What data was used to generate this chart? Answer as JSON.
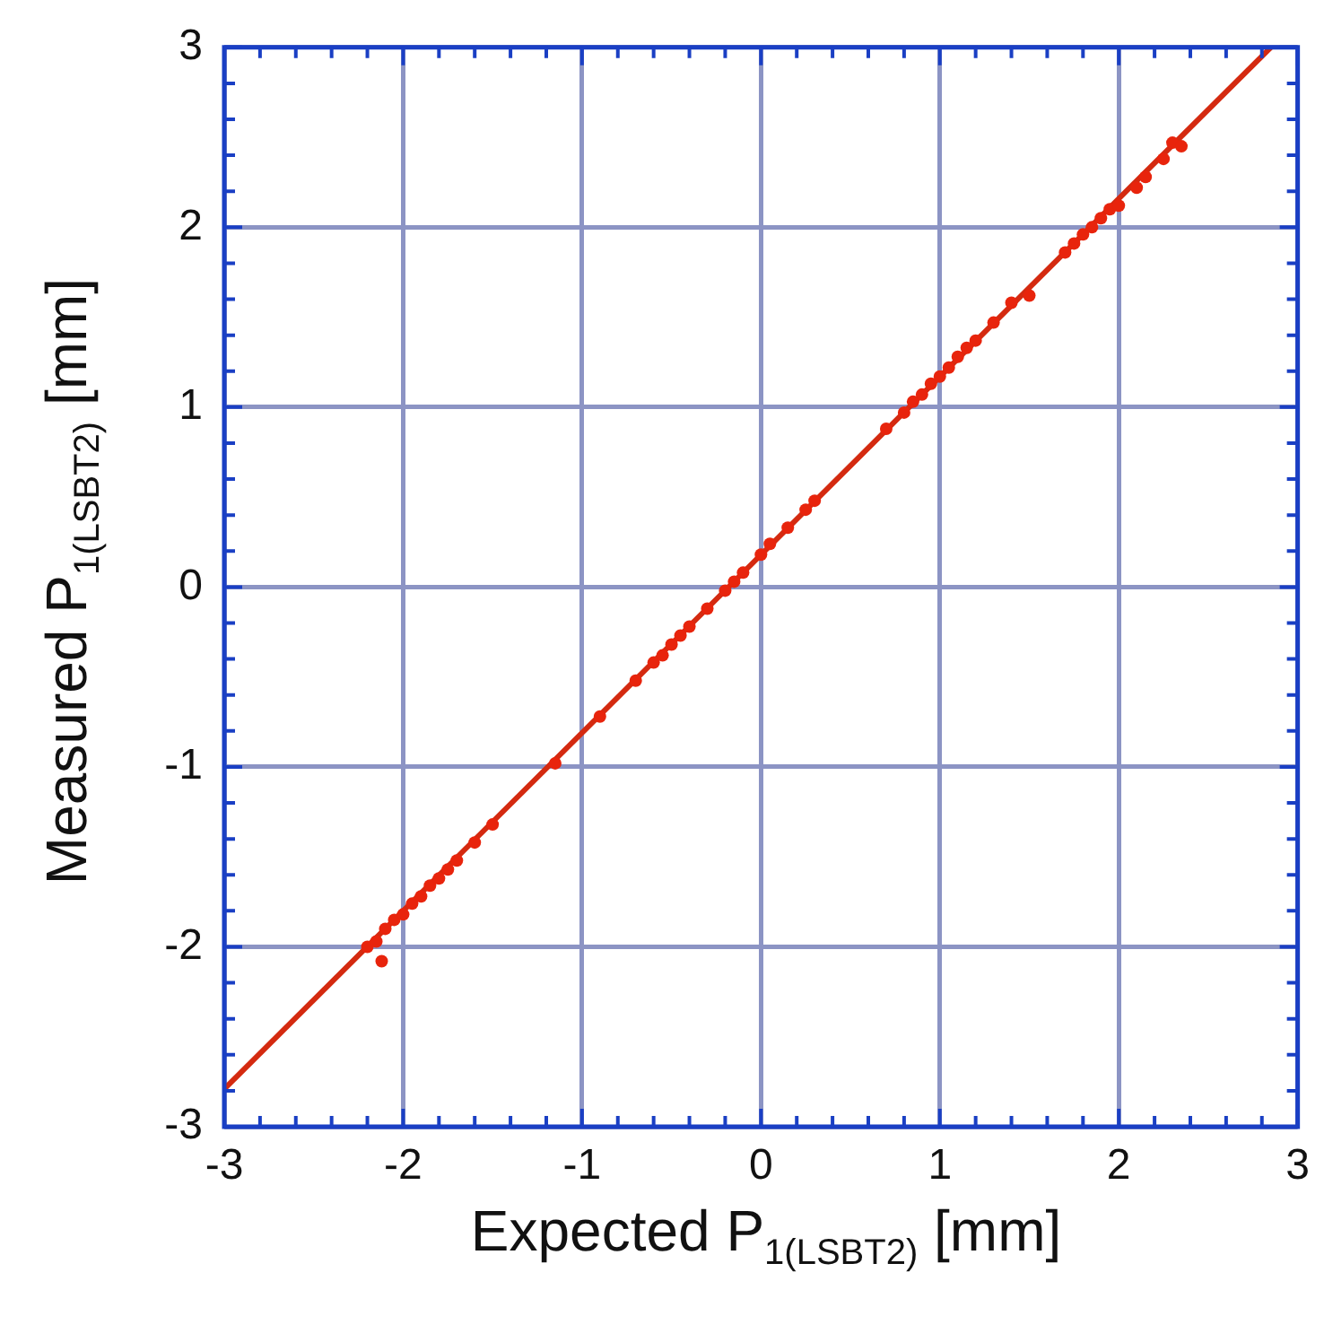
{
  "chart_data": {
    "type": "scatter",
    "xlabel": "Expected P$_{1(LSBT2)}$ [mm]",
    "ylabel": "Measured P$_{1(LSBT2)}$ [mm]",
    "xlim": [
      -3,
      3
    ],
    "ylim": [
      -3,
      3
    ],
    "xticks": [
      -3,
      {
        "value": -2.8,
        "label": null
      },
      {
        "value": -2.6,
        "label": null
      },
      {
        "value": -2.4,
        "label": null
      },
      {
        "value": -2.2,
        "label": null
      },
      -2,
      {
        "value": -1.8,
        "label": null
      },
      {
        "value": -1.6,
        "label": null
      },
      {
        "value": -1.4,
        "label": null
      },
      {
        "value": -1.2,
        "label": null
      },
      -1,
      {
        "value": -0.8,
        "label": null
      },
      {
        "value": -0.6,
        "label": null
      },
      {
        "value": -0.4,
        "label": null
      },
      {
        "value": -0.2,
        "label": null
      },
      0,
      {
        "value": 0.2,
        "label": null
      },
      {
        "value": 0.4,
        "label": null
      },
      {
        "value": 0.6,
        "label": null
      },
      {
        "value": 0.8,
        "label": null
      },
      1,
      {
        "value": 1.2,
        "label": null
      },
      {
        "value": 1.4,
        "label": null
      },
      {
        "value": 1.6,
        "label": null
      },
      {
        "value": 1.8,
        "label": null
      },
      2,
      {
        "value": 2.2,
        "label": null
      },
      {
        "value": 2.4,
        "label": null
      },
      {
        "value": 2.6,
        "label": null
      },
      {
        "value": 2.8,
        "label": null
      },
      3
    ],
    "yticks": [
      -3,
      {
        "value": -2.8,
        "label": null
      },
      {
        "value": -2.6,
        "label": null
      },
      {
        "value": -2.4,
        "label": null
      },
      {
        "value": -2.2,
        "label": null
      },
      -2,
      {
        "value": -1.8,
        "label": null
      },
      {
        "value": -1.6,
        "label": null
      },
      {
        "value": -1.4,
        "label": null
      },
      {
        "value": -1.2,
        "label": null
      },
      -1,
      {
        "value": -0.8,
        "label": null
      },
      {
        "value": -0.6,
        "label": null
      },
      {
        "value": -0.4,
        "label": null
      },
      {
        "value": -0.2,
        "label": null
      },
      0,
      {
        "value": 0.2,
        "label": null
      },
      {
        "value": 0.4,
        "label": null
      },
      {
        "value": 0.6,
        "label": null
      },
      {
        "value": 0.8,
        "label": null
      },
      1,
      {
        "value": 1.2,
        "label": null
      },
      {
        "value": 1.4,
        "label": null
      },
      {
        "value": 1.6,
        "label": null
      },
      {
        "value": 1.8,
        "label": null
      },
      2,
      {
        "value": 2.2,
        "label": null
      },
      {
        "value": 2.4,
        "label": null
      },
      {
        "value": 2.6,
        "label": null
      },
      {
        "value": 2.8,
        "label": null
      },
      3
    ],
    "grid": true,
    "legend": false,
    "marker": "circle",
    "series": [
      {
        "color": "#e8240c",
        "x": [
          -2.2,
          -2.15,
          -2.1,
          -2.12,
          -2.05,
          -2.0,
          -1.95,
          -1.9,
          -1.85,
          -1.8,
          -1.75,
          -1.7,
          -1.6,
          -1.5,
          -1.15,
          -0.9,
          -0.7,
          -0.6,
          -0.55,
          -0.5,
          -0.45,
          -0.4,
          -0.3,
          -0.2,
          -0.15,
          -0.1,
          0,
          0.05,
          0.15,
          0.25,
          0.3,
          0.7,
          0.8,
          0.85,
          0.9,
          0.95,
          1.0,
          1.05,
          1.1,
          1.15,
          1.2,
          1.3,
          1.4,
          1.5,
          1.7,
          1.75,
          1.8,
          1.85,
          1.9,
          1.95,
          2.0,
          2.1,
          2.15,
          2.25,
          2.3,
          2.35
        ],
        "values": [
          -2.0,
          -1.97,
          -1.9,
          -2.08,
          -1.85,
          -1.82,
          -1.76,
          -1.72,
          -1.66,
          -1.62,
          -1.57,
          -1.52,
          -1.42,
          -1.32,
          -0.98,
          -0.72,
          -0.52,
          -0.42,
          -0.38,
          -0.32,
          -0.27,
          -0.22,
          -0.12,
          -0.02,
          0.03,
          0.08,
          0.18,
          0.24,
          0.33,
          0.43,
          0.48,
          0.88,
          0.97,
          1.03,
          1.07,
          1.13,
          1.17,
          1.22,
          1.28,
          1.33,
          1.37,
          1.47,
          1.58,
          1.62,
          1.86,
          1.91,
          1.96,
          2.0,
          2.05,
          2.1,
          2.12,
          2.22,
          2.28,
          2.38,
          2.47,
          2.45
        ]
      },
      {
        "type": "line",
        "color": "#d42a10",
        "marker": "none",
        "x": [
          -3,
          2.85
        ],
        "values": [
          -2.79,
          3.0
        ]
      }
    ]
  }
}
